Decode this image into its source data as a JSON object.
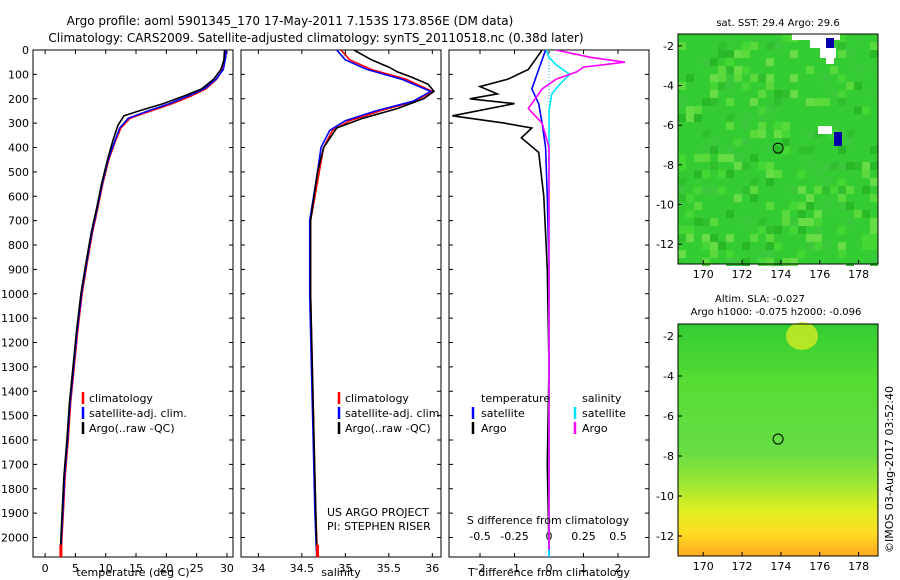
{
  "header": {
    "title_line1": "Argo profile: aoml 5901345_170 17-May-2011 7.153S 173.856E (DM data)",
    "title_line2": "Climatology: CARS2009. Satellite-adjusted climatology: synTS_20110518.nc (0.38d later)"
  },
  "side_label": "©IMOS 03-Aug-2017 03:52:40",
  "colors": {
    "climatology": "#ff0000",
    "satellite": "#0000ff",
    "argo": "#000000",
    "sal_sat": "#00e5ff",
    "sal_argo": "#ff00ff"
  },
  "chart_data": [
    {
      "id": "temperature",
      "type": "line",
      "xlabel": "temperature (deg C)",
      "ylabel": "",
      "xlim": [
        -2,
        31
      ],
      "ylim": [
        2080,
        0
      ],
      "xticks": [
        0,
        5,
        10,
        15,
        20,
        25,
        30
      ],
      "yticks": [
        0,
        100,
        200,
        300,
        400,
        500,
        600,
        700,
        800,
        900,
        1000,
        1100,
        1200,
        1300,
        1400,
        1500,
        1600,
        1700,
        1800,
        1900,
        2000
      ],
      "legend": [
        "climatology",
        "satellite-adj. clim.",
        "Argo(..raw -QC)"
      ],
      "series": [
        {
          "name": "climatology",
          "color": "#ff0000",
          "points": [
            [
              29.8,
              0
            ],
            [
              29.7,
              30
            ],
            [
              29.3,
              80
            ],
            [
              28.3,
              120
            ],
            [
              26.5,
              160
            ],
            [
              24,
              190
            ],
            [
              21,
              220
            ],
            [
              17.5,
              250
            ],
            [
              14,
              280
            ],
            [
              12.5,
              320
            ],
            [
              11.5,
              380
            ],
            [
              10.5,
              450
            ],
            [
              9.5,
              550
            ],
            [
              8.7,
              650
            ],
            [
              7.8,
              750
            ],
            [
              6.9,
              880
            ],
            [
              6.1,
              1000
            ],
            [
              5.4,
              1150
            ],
            [
              4.8,
              1300
            ],
            [
              4.2,
              1450
            ],
            [
              3.8,
              1600
            ],
            [
              3.3,
              1750
            ],
            [
              3,
              1900
            ],
            [
              2.6,
              2080
            ]
          ]
        },
        {
          "name": "satellite-adj. clim.",
          "color": "#0000ff",
          "points": [
            [
              29.9,
              0
            ],
            [
              29.8,
              30
            ],
            [
              29.4,
              80
            ],
            [
              28.2,
              120
            ],
            [
              26.2,
              160
            ],
            [
              23.5,
              190
            ],
            [
              20.5,
              220
            ],
            [
              17,
              250
            ],
            [
              13.7,
              280
            ],
            [
              12.3,
              320
            ],
            [
              11.4,
              380
            ],
            [
              10.4,
              450
            ],
            [
              9.4,
              550
            ],
            [
              8.6,
              650
            ],
            [
              7.7,
              750
            ],
            [
              6.8,
              880
            ],
            [
              6,
              1000
            ],
            [
              5.3,
              1150
            ],
            [
              4.7,
              1300
            ],
            [
              4.1,
              1450
            ],
            [
              3.7,
              1600
            ],
            [
              3.2,
              1750
            ],
            [
              2.9,
              1900
            ],
            [
              2.5,
              2080
            ]
          ]
        },
        {
          "name": "Argo(..raw -QC)",
          "color": "#000000",
          "points": [
            [
              29.6,
              0
            ],
            [
              29.5,
              40
            ],
            [
              29,
              80
            ],
            [
              27.8,
              120
            ],
            [
              25.8,
              160
            ],
            [
              22.8,
              190
            ],
            [
              19.5,
              220
            ],
            [
              15.5,
              250
            ],
            [
              13,
              270
            ],
            [
              12,
              310
            ],
            [
              11.2,
              370
            ],
            [
              10.3,
              450
            ],
            [
              9.3,
              550
            ],
            [
              8.5,
              650
            ],
            [
              7.6,
              750
            ],
            [
              6.7,
              880
            ],
            [
              5.9,
              1000
            ],
            [
              5.2,
              1150
            ],
            [
              4.6,
              1300
            ],
            [
              4,
              1450
            ],
            [
              3.6,
              1600
            ],
            [
              3.1,
              1750
            ],
            [
              2.8,
              1900
            ],
            [
              2.5,
              2060
            ]
          ]
        }
      ]
    },
    {
      "id": "salinity",
      "type": "line",
      "xlabel": "salinity",
      "ylabel": "",
      "xlim": [
        33.8,
        36.1
      ],
      "ylim": [
        2080,
        0
      ],
      "xticks": [
        34,
        34.5,
        35,
        35.5,
        36
      ],
      "legend": [
        "climatology",
        "satellite-adj. clim.",
        "Argo(..raw -QC)"
      ],
      "series": [
        {
          "name": "climatology",
          "color": "#ff0000",
          "points": [
            [
              34.95,
              0
            ],
            [
              35.05,
              40
            ],
            [
              35.3,
              80
            ],
            [
              35.7,
              120
            ],
            [
              36,
              170
            ],
            [
              35.8,
              210
            ],
            [
              35.4,
              250
            ],
            [
              35.05,
              290
            ],
            [
              34.85,
              330
            ],
            [
              34.75,
              400
            ],
            [
              34.7,
              500
            ],
            [
              34.6,
              700
            ],
            [
              34.6,
              1000
            ],
            [
              34.62,
              1300
            ],
            [
              34.64,
              1600
            ],
            [
              34.66,
              1900
            ],
            [
              34.68,
              2080
            ]
          ]
        },
        {
          "name": "satellite-adj. clim.",
          "color": "#0000ff",
          "points": [
            [
              34.9,
              0
            ],
            [
              35,
              40
            ],
            [
              35.25,
              80
            ],
            [
              35.65,
              120
            ],
            [
              35.98,
              170
            ],
            [
              35.78,
              210
            ],
            [
              35.35,
              250
            ],
            [
              35,
              290
            ],
            [
              34.82,
              330
            ],
            [
              34.72,
              400
            ],
            [
              34.68,
              500
            ],
            [
              34.59,
              700
            ],
            [
              34.59,
              1000
            ],
            [
              34.61,
              1300
            ],
            [
              34.63,
              1600
            ],
            [
              34.65,
              1900
            ],
            [
              34.67,
              2080
            ]
          ]
        },
        {
          "name": "Argo(..raw -QC)",
          "color": "#000000",
          "points": [
            [
              35.1,
              0
            ],
            [
              35.3,
              40
            ],
            [
              35.5,
              70
            ],
            [
              35.6,
              90
            ],
            [
              35.75,
              110
            ],
            [
              35.95,
              140
            ],
            [
              36.02,
              170
            ],
            [
              35.9,
              200
            ],
            [
              35.6,
              240
            ],
            [
              35.2,
              280
            ],
            [
              34.9,
              320
            ],
            [
              34.75,
              400
            ],
            [
              34.68,
              500
            ],
            [
              34.6,
              700
            ],
            [
              34.6,
              1000
            ],
            [
              34.62,
              1300
            ],
            [
              34.64,
              1600
            ],
            [
              34.66,
              1900
            ],
            [
              34.67,
              2050
            ]
          ]
        }
      ],
      "annotations": [
        "US ARGO PROJECT",
        "PI: STEPHEN RISER"
      ]
    },
    {
      "id": "differences",
      "type": "line",
      "xlabel": "T difference from climatology",
      "xlabel_top": "S difference from climatology",
      "xlim": [
        -2.9,
        2.9
      ],
      "ylim": [
        2080,
        0
      ],
      "xticks": [
        -2,
        -1,
        0,
        1,
        2
      ],
      "xticks_top": [
        -0.5,
        -0.25,
        0,
        0.25,
        0.5
      ],
      "xticks_top_labels": [
        "-0.5",
        "-0.25",
        "0",
        "0.25",
        "0.5"
      ],
      "legend_titles": [
        "temperature",
        "salinity"
      ],
      "legend": [
        "satellite",
        "Argo",
        "satellite",
        "Argo"
      ],
      "series": [
        {
          "name": "temperature satellite",
          "color": "#0000ff",
          "axis": "T",
          "points": [
            [
              -0.1,
              0
            ],
            [
              -0.3,
              80
            ],
            [
              -0.5,
              160
            ],
            [
              -0.3,
              220
            ],
            [
              -0.2,
              300
            ],
            [
              -0.1,
              400
            ],
            [
              -0.05,
              600
            ],
            [
              0,
              900
            ],
            [
              0,
              1300
            ],
            [
              0,
              1700
            ],
            [
              0,
              2080
            ]
          ]
        },
        {
          "name": "temperature Argo",
          "color": "#000000",
          "axis": "T",
          "points": [
            [
              -0.2,
              0
            ],
            [
              -0.4,
              40
            ],
            [
              -0.6,
              80
            ],
            [
              -1.2,
              120
            ],
            [
              -2,
              150
            ],
            [
              -1.5,
              180
            ],
            [
              -2.3,
              200
            ],
            [
              -1,
              220
            ],
            [
              -2.8,
              270
            ],
            [
              -1.3,
              300
            ],
            [
              -0.5,
              320
            ],
            [
              -0.8,
              360
            ],
            [
              -0.3,
              420
            ],
            [
              -0.15,
              600
            ],
            [
              -0.05,
              900
            ],
            [
              0,
              1300
            ],
            [
              -0.05,
              1700
            ],
            [
              0,
              2050
            ]
          ]
        },
        {
          "name": "salinity satellite",
          "color": "#00e5ff",
          "axis": "S",
          "points": [
            [
              -0.02,
              0
            ],
            [
              0,
              30
            ],
            [
              0.05,
              60
            ],
            [
              0.15,
              100
            ],
            [
              0.08,
              140
            ],
            [
              0.02,
              180
            ],
            [
              0,
              250
            ],
            [
              0,
              400
            ],
            [
              0,
              800
            ],
            [
              0,
              1500
            ],
            [
              0,
              2080
            ]
          ]
        },
        {
          "name": "salinity Argo",
          "color": "#ff00ff",
          "axis": "S",
          "points": [
            [
              0.05,
              0
            ],
            [
              0.3,
              30
            ],
            [
              0.55,
              50
            ],
            [
              0.25,
              70
            ],
            [
              0.2,
              90
            ],
            [
              0.05,
              120
            ],
            [
              -0.05,
              160
            ],
            [
              -0.1,
              200
            ],
            [
              -0.15,
              240
            ],
            [
              -0.05,
              300
            ],
            [
              0,
              400
            ],
            [
              0,
              800
            ],
            [
              0,
              1500
            ],
            [
              0,
              2050
            ]
          ]
        }
      ]
    },
    {
      "id": "sst_map",
      "type": "heatmap",
      "title": "sat. SST: 29.4 Argo: 29.6",
      "xlim": [
        168.7,
        179
      ],
      "ylim": [
        -13,
        -1.4
      ],
      "xticks": [
        170,
        172,
        174,
        176,
        178
      ],
      "yticks": [
        -2,
        -4,
        -6,
        -8,
        -10,
        -12
      ],
      "marker": [
        173.856,
        -7.153
      ]
    },
    {
      "id": "sla_map",
      "type": "heatmap",
      "title": "Altim. SLA: -0.027",
      "subtitle": "Argo h1000: -0.075 h2000: -0.096",
      "xlim": [
        168.7,
        179
      ],
      "ylim": [
        -13,
        -1.4
      ],
      "xticks": [
        170,
        172,
        174,
        176,
        178
      ],
      "yticks": [
        -2,
        -4,
        -6,
        -8,
        -10,
        -12
      ],
      "marker": [
        173.856,
        -7.153
      ]
    }
  ]
}
